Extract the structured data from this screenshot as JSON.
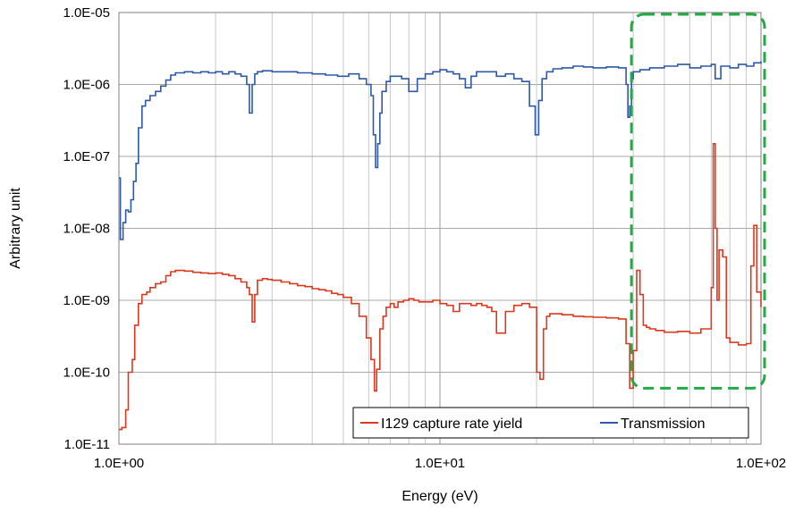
{
  "chart_data": {
    "type": "line",
    "title": "",
    "xlabel": "Energy (eV)",
    "ylabel": "Arbitrary unit",
    "x_scale": "log",
    "y_scale": "log",
    "xlim": [
      1,
      100
    ],
    "ylim": [
      1e-11,
      1e-05
    ],
    "x_ticks": [
      {
        "value": 1,
        "label": "1.0E+00"
      },
      {
        "value": 10,
        "label": "1.0E+01"
      },
      {
        "value": 100,
        "label": "1.0E+02"
      }
    ],
    "y_ticks": [
      {
        "value": 1e-11,
        "label": "1.0E-11"
      },
      {
        "value": 1e-10,
        "label": "1.0E-10"
      },
      {
        "value": 1e-09,
        "label": "1.0E-09"
      },
      {
        "value": 1e-08,
        "label": "1.0E-08"
      },
      {
        "value": 1e-07,
        "label": "1.0E-07"
      },
      {
        "value": 1e-06,
        "label": "1.0E-06"
      },
      {
        "value": 1e-05,
        "label": "1.0E-05"
      }
    ],
    "grid": true,
    "legend_position": "bottom-right",
    "highlight_region": {
      "x_range": [
        40,
        100
      ],
      "y_range": [
        6e-11,
        1e-05
      ],
      "color": "#22aa44",
      "style": "dashed"
    },
    "series": [
      {
        "name": "I129 capture rate yield",
        "color": "#d9391e",
        "x": [
          1.0,
          1.02,
          1.05,
          1.07,
          1.1,
          1.12,
          1.15,
          1.18,
          1.22,
          1.25,
          1.3,
          1.35,
          1.4,
          1.45,
          1.5,
          1.6,
          1.7,
          1.8,
          1.9,
          2.0,
          2.1,
          2.2,
          2.3,
          2.4,
          2.5,
          2.55,
          2.6,
          2.65,
          2.7,
          2.8,
          2.9,
          3.0,
          3.2,
          3.4,
          3.6,
          3.8,
          4.0,
          4.2,
          4.4,
          4.6,
          4.8,
          5.0,
          5.3,
          5.6,
          5.9,
          6.1,
          6.25,
          6.35,
          6.5,
          6.65,
          6.8,
          7.0,
          7.2,
          7.4,
          7.7,
          8.0,
          8.3,
          8.6,
          9.0,
          9.5,
          10.0,
          10.5,
          11.0,
          11.5,
          12.0,
          12.5,
          13.0,
          13.5,
          14.0,
          14.5,
          15.0,
          16.0,
          17.0,
          18.0,
          19.0,
          20.0,
          20.5,
          21.0,
          21.5,
          22.0,
          24.0,
          26.0,
          28.0,
          30.0,
          33.0,
          36.0,
          38.0,
          39.0,
          40.0,
          41.0,
          42.0,
          43.0,
          44.0,
          45.0,
          47.0,
          50.0,
          55.0,
          60.0,
          65.0,
          68.0,
          70.0,
          71.0,
          72.0,
          73.0,
          74.0,
          76.0,
          78.0,
          80.0,
          85.0,
          90.0,
          93.0,
          95.0,
          97.0,
          100.0
        ],
        "values": [
          1.6e-11,
          1.7e-11,
          3e-11,
          1e-10,
          1.5e-10,
          4.5e-10,
          9e-10,
          1.2e-09,
          1.3e-09,
          1.5e-09,
          1.7e-09,
          1.8e-09,
          2.2e-09,
          2.5e-09,
          2.6e-09,
          2.55e-09,
          2.45e-09,
          2.4e-09,
          2.35e-09,
          2.4e-09,
          2.3e-09,
          2.2e-09,
          2e-09,
          1.8e-09,
          1.5e-09,
          1.2e-09,
          5e-10,
          1.2e-09,
          1.9e-09,
          2e-09,
          1.95e-09,
          1.9e-09,
          1.8e-09,
          1.7e-09,
          1.6e-09,
          1.55e-09,
          1.45e-09,
          1.4e-09,
          1.35e-09,
          1.25e-09,
          1.2e-09,
          1.1e-09,
          9e-10,
          6e-10,
          3e-10,
          1.5e-10,
          5.5e-11,
          1.1e-10,
          4e-10,
          6e-10,
          8e-10,
          9e-10,
          8e-10,
          9.5e-10,
          1e-09,
          1.05e-09,
          1e-09,
          9.5e-10,
          9.5e-10,
          1e-09,
          9e-10,
          8.5e-10,
          7e-10,
          9e-10,
          9e-10,
          8.5e-10,
          9e-10,
          8.5e-10,
          8e-10,
          7e-10,
          3.5e-10,
          7e-10,
          8.5e-10,
          9e-10,
          8e-10,
          1e-10,
          8e-11,
          4e-10,
          6e-10,
          6.5e-10,
          6.3e-10,
          6e-10,
          5.9e-10,
          5.8e-10,
          5.7e-10,
          5.5e-10,
          2.5e-10,
          6e-11,
          2e-10,
          2.6e-09,
          1.2e-09,
          4.5e-10,
          4.2e-10,
          4e-10,
          3.8e-10,
          3.6e-10,
          3.7e-10,
          3.5e-10,
          4e-10,
          4e-10,
          1.5e-09,
          1.5e-07,
          1e-08,
          1e-09,
          5e-09,
          4e-09,
          3e-10,
          2.6e-10,
          2.4e-10,
          2.5e-10,
          3e-09,
          1.1e-08,
          1.3e-09,
          8e-10
        ]
      },
      {
        "name": "Transmission",
        "color": "#2f58a8",
        "x": [
          1.0,
          1.01,
          1.03,
          1.05,
          1.07,
          1.09,
          1.11,
          1.13,
          1.15,
          1.18,
          1.21,
          1.25,
          1.3,
          1.35,
          1.4,
          1.45,
          1.5,
          1.6,
          1.7,
          1.8,
          1.9,
          2.0,
          2.1,
          2.2,
          2.3,
          2.4,
          2.5,
          2.55,
          2.6,
          2.65,
          2.7,
          2.8,
          3.0,
          3.3,
          3.6,
          4.0,
          4.4,
          4.8,
          5.2,
          5.6,
          5.9,
          6.1,
          6.2,
          6.3,
          6.4,
          6.5,
          6.6,
          6.8,
          7.0,
          7.3,
          7.6,
          8.0,
          8.5,
          9.0,
          9.5,
          10.0,
          10.5,
          11.0,
          11.5,
          12.0,
          12.5,
          13.0,
          14.0,
          15.0,
          16.0,
          17.0,
          18.0,
          19.0,
          19.8,
          20.3,
          20.8,
          21.5,
          22.5,
          24.0,
          26.0,
          28.0,
          30.0,
          33.0,
          36.0,
          38.0,
          38.5,
          39.0,
          39.5,
          40.0,
          42.0,
          45.0,
          50.0,
          55.0,
          60.0,
          65.0,
          70.0,
          72.0,
          75.0,
          80.0,
          85.0,
          90.0,
          95.0,
          100.0
        ],
        "values": [
          5e-08,
          7e-09,
          1.2e-08,
          1.8e-08,
          1.7e-08,
          2.5e-08,
          4.5e-08,
          8e-08,
          2.5e-07,
          5e-07,
          6e-07,
          7e-07,
          8e-07,
          9.5e-07,
          1.15e-06,
          1.35e-06,
          1.45e-06,
          1.5e-06,
          1.45e-06,
          1.5e-06,
          1.45e-06,
          1.5e-06,
          1.4e-06,
          1.5e-06,
          1.4e-06,
          1.3e-06,
          1e-06,
          4e-07,
          1e-06,
          1.4e-06,
          1.5e-06,
          1.55e-06,
          1.5e-06,
          1.5e-06,
          1.45e-06,
          1.4e-06,
          1.35e-06,
          1.3e-06,
          1.4e-06,
          1.2e-06,
          1e-06,
          7e-07,
          2e-07,
          7e-08,
          1.5e-07,
          4e-07,
          8e-07,
          1.1e-06,
          1.3e-06,
          1.3e-06,
          1.2e-06,
          8e-07,
          1.2e-06,
          1.4e-06,
          1.5e-06,
          1.6e-06,
          1.5e-06,
          1.4e-06,
          1.2e-06,
          9e-07,
          1.3e-06,
          1.5e-06,
          1.5e-06,
          1.3e-06,
          1.4e-06,
          1.2e-06,
          1.1e-06,
          5e-07,
          2e-07,
          6e-07,
          1.2e-06,
          1.5e-06,
          1.65e-06,
          1.7e-06,
          1.8e-06,
          1.75e-06,
          1.7e-06,
          1.75e-06,
          1.7e-06,
          1e-06,
          3.5e-07,
          5e-07,
          1.2e-06,
          1.5e-06,
          1.6e-06,
          1.7e-06,
          1.8e-06,
          1.9e-06,
          1.7e-06,
          1.8e-06,
          1.9e-06,
          1.2e-06,
          1.8e-06,
          1.7e-06,
          1.9e-06,
          1.8e-06,
          2e-06,
          2.1e-06
        ]
      }
    ]
  }
}
